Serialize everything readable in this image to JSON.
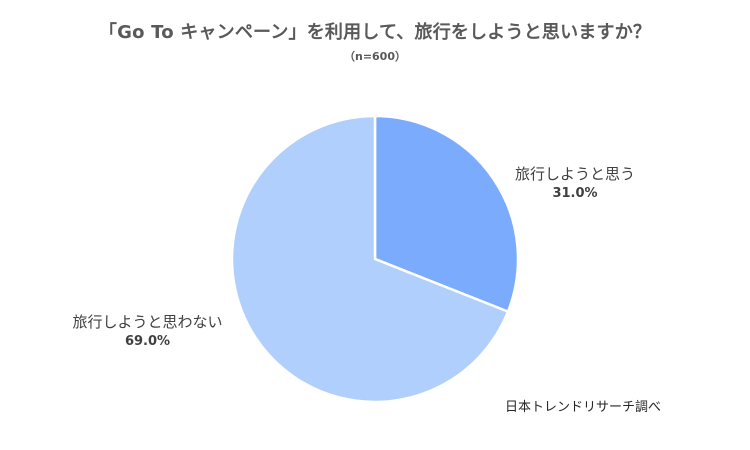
{
  "chart_data": {
    "type": "pie",
    "title": "「Go To キャンペーン」を利用して、旅行をしようと思いますか？",
    "subtitle": "（n=600）",
    "slices": [
      {
        "label": "旅行しようと思う",
        "value": 31.0,
        "value_label": "31.0%",
        "color": "#7aabfd"
      },
      {
        "label": "旅行しようと思わない",
        "value": 69.0,
        "value_label": "69.0%",
        "color": "#b1cffd"
      }
    ],
    "start_angle": "12 o'clock",
    "direction": "clockwise",
    "legend": "none"
  },
  "source_note": "日本トレンドリサーチ調べ",
  "colors": {
    "text": "#404040",
    "title": "#595959",
    "slice_border": "#ffffff"
  }
}
